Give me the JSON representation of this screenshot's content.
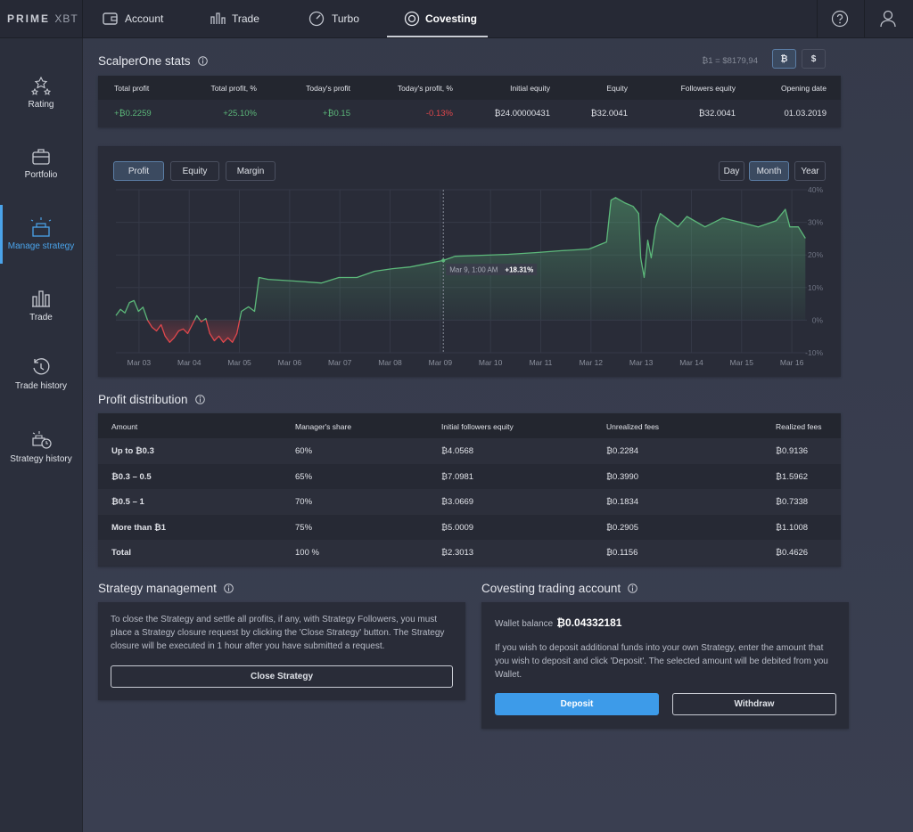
{
  "nav": {
    "brand": "PRIME",
    "brand_suffix": "XBT",
    "tabs": [
      "Account",
      "Trade",
      "Turbo",
      "Covesting"
    ]
  },
  "sidebar": [
    "Rating",
    "Portfolio",
    "Manage strategy",
    "Trade",
    "Trade history",
    "Strategy history"
  ],
  "stats": {
    "title": "ScalperOne stats",
    "rate": "₿1 = $8179,94",
    "currencies": [
      "₿",
      "$"
    ],
    "headers": [
      "Total profit",
      "Total profit, %",
      "Today's profit",
      "Today's profit, %",
      "Initial equity",
      "Equity",
      "Followers equity",
      "Opening date"
    ],
    "values": [
      "+₿0.2259",
      "+25.10%",
      "+₿0.15",
      "-0.13%",
      "₿24.00000431",
      "₿32.0041",
      "₿32.0041",
      "01.03.2019"
    ]
  },
  "chart_controls": {
    "modes": [
      "Profit",
      "Equity",
      "Margin"
    ],
    "ranges": [
      "Day",
      "Month",
      "Year"
    ]
  },
  "chart_data": {
    "type": "line",
    "x": [
      2.54,
      2.63,
      2.72,
      2.81,
      2.9,
      2.99,
      3.08,
      3.17,
      3.26,
      3.35,
      3.44,
      3.52,
      3.61,
      3.7,
      3.79,
      3.88,
      3.97,
      4.06,
      4.15,
      4.24,
      4.33,
      4.41,
      4.5,
      4.59,
      4.68,
      4.77,
      4.86,
      4.95,
      5.04,
      5.18,
      5.3,
      5.39,
      5.57,
      6.1,
      6.63,
      6.98,
      7.34,
      7.69,
      8.05,
      8.4,
      8.76,
      9.06,
      9.29,
      9.82,
      10.36,
      10.89,
      11.42,
      11.96,
      12.31,
      12.4,
      12.49,
      12.67,
      12.84,
      12.95,
      12.99,
      13.06,
      13.13,
      13.2,
      13.29,
      13.38,
      13.73,
      13.91,
      14.27,
      14.62,
      14.98,
      15.33,
      15.69,
      15.87,
      15.96,
      16.13,
      16.27
    ],
    "values": [
      1.4,
      3.3,
      2.2,
      5.4,
      6,
      2.7,
      4,
      0,
      -2.2,
      -3.3,
      -1.4,
      -4.9,
      -6.8,
      -5.4,
      -3.3,
      -2.7,
      -4.1,
      -1.4,
      1.4,
      -0.5,
      0.5,
      -4.1,
      -6.3,
      -4.9,
      -6.8,
      -5.4,
      -6.8,
      -4.1,
      2.7,
      4.1,
      2.7,
      13.1,
      12.5,
      12,
      11.4,
      13.1,
      13.1,
      15,
      15.8,
      16.3,
      17.4,
      18.3,
      19.6,
      19.9,
      20.2,
      20.7,
      21.3,
      21.8,
      24,
      36.8,
      37.6,
      36,
      34.9,
      32.7,
      19.1,
      13.1,
      24.5,
      19.1,
      28.6,
      32.7,
      28.6,
      31.8,
      28.6,
      31.3,
      30,
      28.6,
      30.5,
      34,
      28.6,
      28.6,
      25.1
    ],
    "color": "#5cb87a",
    "negative_color": "#e0474c",
    "xlim": [
      2.54,
      16.3
    ],
    "xticks": [
      {
        "value": 3,
        "label": "Mar 03"
      },
      {
        "value": 4,
        "label": "Mar 04"
      },
      {
        "value": 5,
        "label": "Mar 05"
      },
      {
        "value": 6,
        "label": "Mar 06"
      },
      {
        "value": 7,
        "label": "Mar 07"
      },
      {
        "value": 8,
        "label": "Mar 08"
      },
      {
        "value": 9,
        "label": "Mar 09"
      },
      {
        "value": 10,
        "label": "Mar 10"
      },
      {
        "value": 11,
        "label": "Mar 11"
      },
      {
        "value": 12,
        "label": "Mar 12"
      },
      {
        "value": 13,
        "label": "Mar 13"
      },
      {
        "value": 14,
        "label": "Mar 14"
      },
      {
        "value": 15,
        "label": "Mar 15"
      },
      {
        "value": 16,
        "label": "Mar 16"
      }
    ],
    "ylim": [
      -10,
      40
    ],
    "yticks": [
      {
        "value": -10,
        "label": "-10%"
      },
      {
        "value": 0,
        "label": "0%"
      },
      {
        "value": 10,
        "label": "10%"
      },
      {
        "value": 20,
        "label": "20%"
      },
      {
        "value": 30,
        "label": "30%"
      },
      {
        "value": 40,
        "label": "40%"
      }
    ],
    "grid": true,
    "annotation": {
      "x": 9.06,
      "text": "Mar 9, 1:00 AM",
      "value": 18.31,
      "value_label": "+18.31%"
    }
  },
  "profit_distribution": {
    "title": "Profit distribution",
    "headers": [
      "Amount",
      "Manager's share",
      "Initial followers equity",
      "Unrealized fees",
      "Realized fees"
    ],
    "rows": [
      [
        "Up to ₿0.3",
        "60%",
        "₿4.0568",
        "₿0.2284",
        "₿0.9136"
      ],
      [
        "₿0.3 – 0.5",
        "65%",
        "₿7.0981",
        "₿0.3990",
        "₿1.5962"
      ],
      [
        "₿0.5 – 1",
        "70%",
        "₿3.0669",
        "₿0.1834",
        "₿0.7338"
      ],
      [
        "More than ₿1",
        "75%",
        "₿5.0009",
        "₿0.2905",
        "₿1.1008"
      ],
      [
        "Total",
        "100 %",
        "₿2.3013",
        "₿0.1156",
        "₿0.4626"
      ]
    ]
  },
  "strategy_management": {
    "title": "Strategy management",
    "text": "To close the Strategy and settle all profits, if any, with Strategy Followers, you must place a Strategy closure request by clicking the 'Close Strategy' button. The Strategy closure will be executed in 1 hour after you have submitted a request.",
    "button": "Close Strategy"
  },
  "covesting_account": {
    "title": "Covesting trading account",
    "balance_label": "Wallet balance",
    "balance": "₿0.04332181",
    "text": "If you wish to deposit additional funds into your own Strategy, enter the amount that you wish to deposit and click 'Deposit'. The selected amount will be debited from you Wallet.",
    "buttons": [
      "Deposit",
      "Withdraw"
    ]
  }
}
